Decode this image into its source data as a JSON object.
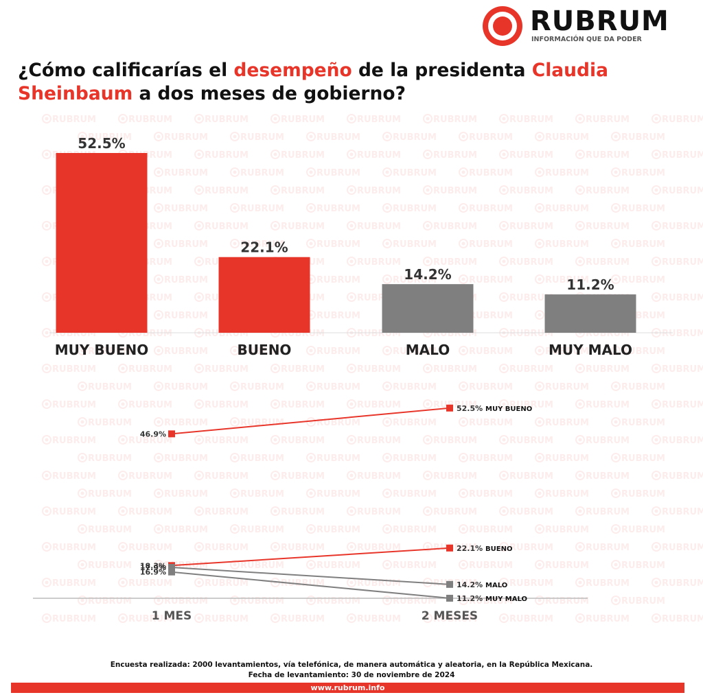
{
  "brand": {
    "name": "RUBRUM",
    "tagline": "INFORMACIÓN QUE DA PODER",
    "watermark": "RUBRUM",
    "accent": "#e8352a",
    "neutral": "#7f7f7f"
  },
  "headline": {
    "part1": "¿Cómo calificarías el ",
    "highlight1": "desempeño",
    "part2": " de la presidenta ",
    "highlight2": "Claudia Sheinbaum",
    "part3": " a dos meses de gobierno?"
  },
  "chart_data": [
    {
      "type": "bar",
      "categories": [
        "MUY BUENO",
        "BUENO",
        "MALO",
        "MUY MALO"
      ],
      "values": [
        52.5,
        22.1,
        14.2,
        11.2
      ],
      "value_labels": [
        "52.5%",
        "22.1%",
        "14.2%",
        "11.2%"
      ],
      "colors": [
        "#e8352a",
        "#e8352a",
        "#7f7f7f",
        "#7f7f7f"
      ],
      "ylim": [
        0,
        52.5
      ],
      "grid": false,
      "legend": "none"
    },
    {
      "type": "line",
      "x": [
        "1 MES",
        "2 MESES"
      ],
      "series": [
        {
          "name": "MUY BUENO",
          "values": [
            46.9,
            52.5
          ],
          "labels": [
            "46.9%",
            "52.5%"
          ],
          "color": "#e8352a"
        },
        {
          "name": "BUENO",
          "values": [
            18.3,
            22.1
          ],
          "labels": [
            "18.3%",
            "22.1%"
          ],
          "color": "#e8352a"
        },
        {
          "name": "MALO",
          "values": [
            17.9,
            14.2
          ],
          "labels": [
            "17.9%",
            "14.2%"
          ],
          "color": "#7f7f7f"
        },
        {
          "name": "MUY MALO",
          "values": [
            16.9,
            11.2
          ],
          "labels": [
            "16.9%",
            "11.2%"
          ],
          "color": "#7f7f7f"
        }
      ],
      "grid": false,
      "legend": "end-of-line labels"
    }
  ],
  "footer": {
    "note1": "Encuesta realizada: 2000 levantamientos, vía telefónica, de manera automática y aleatoria, en la República Mexicana.",
    "note2": "Fecha de levantamiento: 30 de noviembre de 2024",
    "url": "www.rubrum.info"
  }
}
